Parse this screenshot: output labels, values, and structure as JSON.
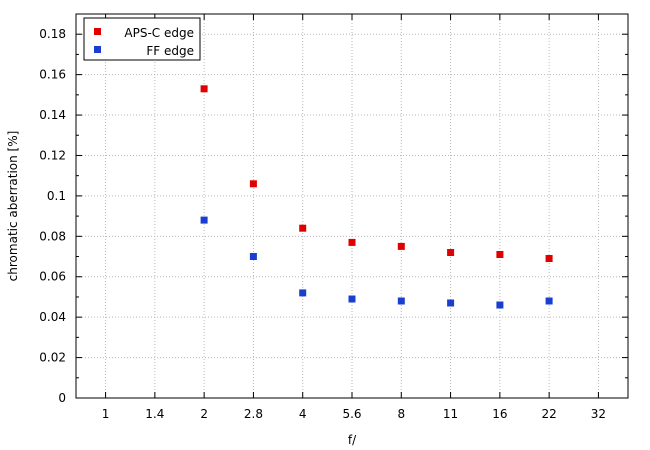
{
  "chart_data": {
    "type": "scatter",
    "xlabel": "f/",
    "ylabel": "chromatic aberration [%]",
    "x_categories": [
      "1",
      "1.4",
      "2",
      "2.8",
      "4",
      "5.6",
      "8",
      "11",
      "16",
      "22",
      "32"
    ],
    "y_ticks": [
      "0",
      "0.02",
      "0.04",
      "0.06",
      "0.08",
      "0.1",
      "0.12",
      "0.14",
      "0.16",
      "0.18"
    ],
    "ylim": [
      0,
      0.19
    ],
    "grid": true,
    "legend_position": "top-left",
    "series": [
      {
        "name": "APS-C edge",
        "color": "#e00000",
        "points": [
          {
            "x": "2",
            "y": 0.153
          },
          {
            "x": "2.8",
            "y": 0.106
          },
          {
            "x": "4",
            "y": 0.084
          },
          {
            "x": "5.6",
            "y": 0.077
          },
          {
            "x": "8",
            "y": 0.075
          },
          {
            "x": "11",
            "y": 0.072
          },
          {
            "x": "16",
            "y": 0.071
          },
          {
            "x": "22",
            "y": 0.069
          }
        ]
      },
      {
        "name": "FF edge",
        "color": "#1a3fd0",
        "points": [
          {
            "x": "2",
            "y": 0.088
          },
          {
            "x": "2.8",
            "y": 0.07
          },
          {
            "x": "4",
            "y": 0.052
          },
          {
            "x": "5.6",
            "y": 0.049
          },
          {
            "x": "8",
            "y": 0.048
          },
          {
            "x": "11",
            "y": 0.047
          },
          {
            "x": "16",
            "y": 0.046
          },
          {
            "x": "22",
            "y": 0.048
          }
        ]
      }
    ]
  }
}
